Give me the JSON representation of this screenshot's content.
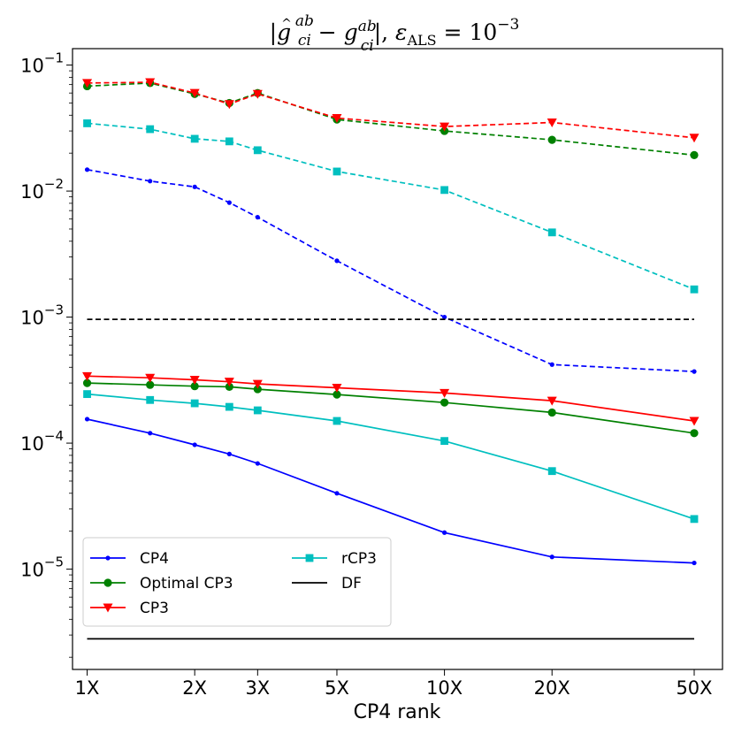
{
  "chart_data": {
    "type": "line",
    "title": "|ĝ_ci^ab − g_ci^ab|, ε_ALS = 10^−3",
    "title_parts": {
      "abs_open": "|",
      "g": "g",
      "hat": "^",
      "sub": "ci",
      "sup": "ab",
      "minus": " − ",
      "abs_close": "|, ",
      "eps": "ε",
      "eps_sub": "ALS",
      "equals": " = 10",
      "exp": "−3"
    },
    "xlabel": "CP4 rank",
    "ylabel": "",
    "x_scale": "log",
    "y_scale": "log",
    "xlim": [
      0.91,
      60
    ],
    "ylim": [
      1.6e-06,
      0.135
    ],
    "x_ticks": [
      {
        "value": 1,
        "label": "1X"
      },
      {
        "value": 2,
        "label": "2X"
      },
      {
        "value": 3,
        "label": "3X"
      },
      {
        "value": 5,
        "label": "5X"
      },
      {
        "value": 10,
        "label": "10X"
      },
      {
        "value": 20,
        "label": "20X"
      },
      {
        "value": 50,
        "label": "50X"
      }
    ],
    "y_ticks": [
      {
        "value": 1e-05,
        "base": "10",
        "exp": "−5"
      },
      {
        "value": 0.0001,
        "base": "10",
        "exp": "−4"
      },
      {
        "value": 0.001,
        "base": "10",
        "exp": "−3"
      },
      {
        "value": 0.01,
        "base": "10",
        "exp": "−2"
      },
      {
        "value": 0.1,
        "base": "10",
        "exp": "−1"
      }
    ],
    "grid": false,
    "legend_position": "lower-left",
    "series": [
      {
        "name": "CP4",
        "color": "#0000ff",
        "marker": "dot",
        "dash": "solid",
        "in_legend": true,
        "x": [
          1,
          1.5,
          2,
          2.5,
          3,
          5,
          10,
          20,
          50
        ],
        "y": [
          0.000155,
          0.00012,
          9.7e-05,
          8.2e-05,
          6.9e-05,
          4e-05,
          1.95e-05,
          1.25e-05,
          1.12e-05
        ]
      },
      {
        "name": "Optimal CP3",
        "color": "#008000",
        "marker": "circle",
        "dash": "solid",
        "in_legend": true,
        "x": [
          1,
          1.5,
          2,
          2.5,
          3,
          5,
          10,
          20,
          50
        ],
        "y": [
          0.0003,
          0.00029,
          0.000283,
          0.00028,
          0.000268,
          0.000243,
          0.00021,
          0.000175,
          0.00012
        ]
      },
      {
        "name": "CP3",
        "color": "#ff0000",
        "marker": "triangle-down",
        "dash": "solid",
        "in_legend": true,
        "x": [
          1,
          1.5,
          2,
          2.5,
          3,
          5,
          10,
          20,
          50
        ],
        "y": [
          0.00034,
          0.00033,
          0.000318,
          0.000307,
          0.000295,
          0.000275,
          0.00025,
          0.000217,
          0.00015
        ]
      },
      {
        "name": "rCP3",
        "color": "#00bfbf",
        "marker": "square",
        "dash": "solid",
        "in_legend": true,
        "x": [
          1,
          1.5,
          2,
          2.5,
          3,
          5,
          10,
          20,
          50
        ],
        "y": [
          0.000245,
          0.00022,
          0.000207,
          0.000194,
          0.000182,
          0.00015,
          0.000104,
          6e-05,
          2.5e-05
        ]
      },
      {
        "name": "DF",
        "color": "#000000",
        "marker": "none",
        "dash": "solid",
        "in_legend": true,
        "x": [
          1,
          50
        ],
        "y": [
          2.8e-06,
          2.8e-06
        ]
      },
      {
        "name": "",
        "color": "#0000ff",
        "marker": "dot",
        "dash": "dashed",
        "in_legend": false,
        "x": [
          1,
          1.5,
          2,
          2.5,
          3,
          5,
          10,
          20,
          50
        ],
        "y": [
          0.0148,
          0.012,
          0.0108,
          0.0081,
          0.0062,
          0.0028,
          0.001,
          0.00042,
          0.00037
        ]
      },
      {
        "name": "",
        "color": "#008000",
        "marker": "circle",
        "dash": "dashed",
        "in_legend": false,
        "x": [
          1,
          1.5,
          2,
          2.5,
          3,
          5,
          10,
          20,
          50
        ],
        "y": [
          0.068,
          0.072,
          0.059,
          0.05,
          0.06,
          0.037,
          0.03,
          0.0255,
          0.0193
        ]
      },
      {
        "name": "",
        "color": "#ff0000",
        "marker": "triangle-down",
        "dash": "dashed",
        "in_legend": false,
        "x": [
          1,
          1.5,
          2,
          2.5,
          3,
          5,
          10,
          20,
          50
        ],
        "y": [
          0.072,
          0.073,
          0.06,
          0.049,
          0.059,
          0.038,
          0.0325,
          0.035,
          0.0265
        ]
      },
      {
        "name": "",
        "color": "#00bfbf",
        "marker": "square",
        "dash": "dashed",
        "in_legend": false,
        "x": [
          1,
          1.5,
          2,
          2.5,
          3,
          5,
          10,
          20,
          50
        ],
        "y": [
          0.0345,
          0.031,
          0.026,
          0.0248,
          0.0211,
          0.0143,
          0.0102,
          0.0047,
          0.00166
        ]
      },
      {
        "name": "",
        "color": "#000000",
        "marker": "none",
        "dash": "dashed",
        "in_legend": false,
        "x": [
          1,
          50
        ],
        "y": [
          0.00096,
          0.00096
        ]
      }
    ]
  }
}
